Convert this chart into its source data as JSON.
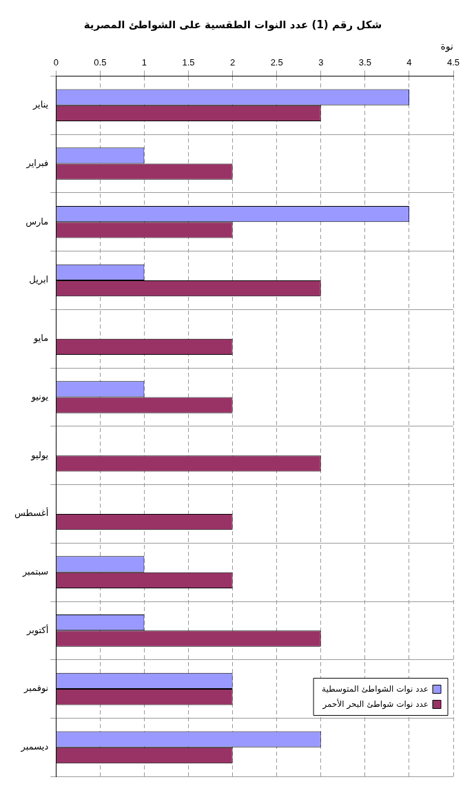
{
  "chart_data": {
    "type": "bar",
    "orientation": "horizontal",
    "title": "شكل رقم (1) عدد النوات الطقسية على الشواطئ المصرية",
    "ylabel": "نوة",
    "categories": [
      "يناير",
      "فبراير",
      "مارس",
      "ابريل",
      "مايو",
      "يونيو",
      "يوليو",
      "أغسطس",
      "سبتمبر",
      "أكتوبر",
      "نوفمبر",
      "ديسمبر"
    ],
    "series": [
      {
        "name": "عدد نوات الشواطئ المتوسطية",
        "color": "#9999ff",
        "values": [
          4,
          1,
          4,
          1,
          0,
          1,
          0,
          0,
          1,
          1,
          2,
          3
        ]
      },
      {
        "name": "عدد نوات شواطئ البحر الأحمر",
        "color": "#993366",
        "values": [
          3,
          2,
          2,
          3,
          2,
          2,
          3,
          2,
          2,
          3,
          2,
          2
        ]
      }
    ],
    "xlim": [
      0,
      4.5
    ],
    "xticks": [
      0,
      0.5,
      1,
      1.5,
      2,
      2.5,
      3,
      3.5,
      4,
      4.5
    ],
    "grid": true,
    "legend": "bottom right"
  }
}
